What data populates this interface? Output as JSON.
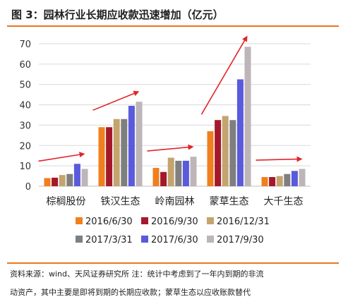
{
  "title": "图 3：园林行业长期应收款迅速增加（亿元）",
  "footer": {
    "line1": "资料来源：wind、天风证券研究所    注：统计中考虑到了一年内到期的非流",
    "line2": "动资产，其中主要是即将到期的长期应收款；蒙草生态以应收账款替代"
  },
  "chart_data": {
    "type": "bar",
    "title": "",
    "xlabel": "",
    "ylabel": "",
    "ylim": [
      0,
      70
    ],
    "yticks": [
      0,
      10,
      20,
      30,
      40,
      50,
      60,
      70
    ],
    "grid": true,
    "legend_position": "bottom",
    "categories": [
      "棕榈股份",
      "铁汉生态",
      "岭南园林",
      "蒙草生态",
      "大千生态"
    ],
    "series": [
      {
        "name": "2016/6/30",
        "color": "#f07f1e",
        "values": [
          4,
          29,
          9,
          27,
          4.5
        ]
      },
      {
        "name": "2016/9/30",
        "color": "#a5182a",
        "values": [
          4.2,
          29,
          7,
          32.5,
          4.5
        ]
      },
      {
        "name": "2016/12/31",
        "color": "#c4a46e",
        "values": [
          5.5,
          33,
          14,
          34.5,
          5
        ]
      },
      {
        "name": "2017/3/31",
        "color": "#7f7f7f",
        "values": [
          6,
          33,
          12.5,
          32.5,
          6
        ]
      },
      {
        "name": "2017/6/30",
        "color": "#5a5adc",
        "values": [
          11,
          39.5,
          12.5,
          52.5,
          7.5
        ]
      },
      {
        "name": "2017/9/30",
        "color": "#bdb5b8",
        "values": [
          8.5,
          41.5,
          14.5,
          68.5,
          8.5
        ]
      }
    ],
    "arrow_color": "#e3242b"
  }
}
